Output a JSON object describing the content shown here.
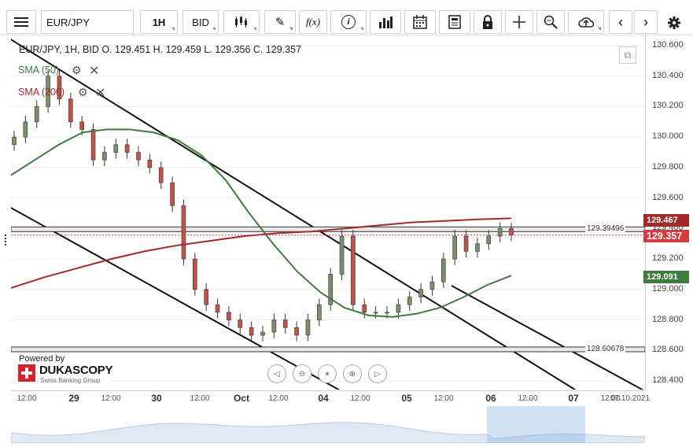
{
  "toolbar": {
    "symbol": "EUR/JPY",
    "interval": "1H",
    "price_type": "BID",
    "buttons": [
      "menu-icon",
      "candles-icon",
      "draw-icon",
      "function-icon",
      "info-icon",
      "bar-chart-icon",
      "calendar-icon",
      "news-icon",
      "lock-icon",
      "crosshair-icon",
      "zoom-icon",
      "upload-icon",
      "prev-icon",
      "next-icon",
      "gear-icon"
    ]
  },
  "header": {
    "summary": "EUR/JPY, 1H, BID   O. 129.451 H. 129.459 L. 129.356 C. 129.357",
    "sma50_label": "SMA (50)",
    "sma200_label": "SMA (200)"
  },
  "axis": {
    "y_ticks": [
      "130.600",
      "130.400",
      "130.200",
      "130.000",
      "129.800",
      "129.600",
      "129.400",
      "129.200",
      "129.000",
      "128.800",
      "128.600",
      "128.400"
    ],
    "x_ticks": [
      {
        "t": "12:00",
        "big": false
      },
      {
        "t": "29",
        "big": true
      },
      {
        "t": "12:00",
        "big": false
      },
      {
        "t": "30",
        "big": true
      },
      {
        "t": "12:00",
        "big": false
      },
      {
        "t": "Oct",
        "big": true
      },
      {
        "t": "12:00",
        "big": false
      },
      {
        "t": "04",
        "big": true
      },
      {
        "t": "12:00",
        "big": false
      },
      {
        "t": "05",
        "big": true
      },
      {
        "t": "12:00",
        "big": false
      },
      {
        "t": "06",
        "big": true
      },
      {
        "t": "12:00",
        "big": false
      },
      {
        "t": "07",
        "big": true
      },
      {
        "t": "12:00",
        "big": false
      },
      {
        "t": "07.10.2021",
        "big": false
      }
    ]
  },
  "badges": {
    "sma200_value": "129.467",
    "last_price": "129.357",
    "sma50_value": "129.091",
    "colors": {
      "sma200": "#a02a2a",
      "last": "#d23c3c",
      "sma50": "#3f7a3f"
    }
  },
  "levels": {
    "upper": "129.39496",
    "lower": "128.60678"
  },
  "branding": {
    "powered_by": "Powered by",
    "company": "DUKASCOPY",
    "tagline": "Swiss Banking Group"
  },
  "chart_data": {
    "type": "candlestick",
    "title": "EUR/JPY, 1H, BID",
    "ylim": [
      128.35,
      130.65
    ],
    "ohlc_last": {
      "open": 129.451,
      "high": 129.459,
      "low": 129.356,
      "close": 129.357
    },
    "closes": [
      130.0,
      130.1,
      130.2,
      130.4,
      130.25,
      130.1,
      130.05,
      129.85,
      129.9,
      129.95,
      129.9,
      129.85,
      129.8,
      129.7,
      129.55,
      129.2,
      129.0,
      128.9,
      128.85,
      128.8,
      128.75,
      128.7,
      128.72,
      128.8,
      128.75,
      128.7,
      128.8,
      128.9,
      129.1,
      129.35,
      128.9,
      128.85,
      128.85,
      128.85,
      128.9,
      128.95,
      129.0,
      129.05,
      129.2,
      129.35,
      129.25,
      129.3,
      129.35,
      129.4,
      129.357
    ],
    "series": [
      {
        "name": "SMA (50)",
        "color": "#3f7a3f",
        "values": [
          129.75,
          129.85,
          129.95,
          130.03,
          130.05,
          130.05,
          130.03,
          129.98,
          129.88,
          129.72,
          129.5,
          129.3,
          129.12,
          128.98,
          128.88,
          128.83,
          128.82,
          128.84,
          128.88,
          128.95,
          129.03,
          129.091
        ]
      },
      {
        "name": "SMA (200)",
        "color": "#a02a2a",
        "values": [
          129.01,
          129.08,
          129.14,
          129.2,
          129.25,
          129.29,
          129.32,
          129.35,
          129.37,
          129.38,
          129.4,
          129.42,
          129.44,
          129.45,
          129.46,
          129.467
        ]
      }
    ],
    "horizontal_levels": [
      129.39496,
      128.60678
    ],
    "last_price": 129.357
  }
}
